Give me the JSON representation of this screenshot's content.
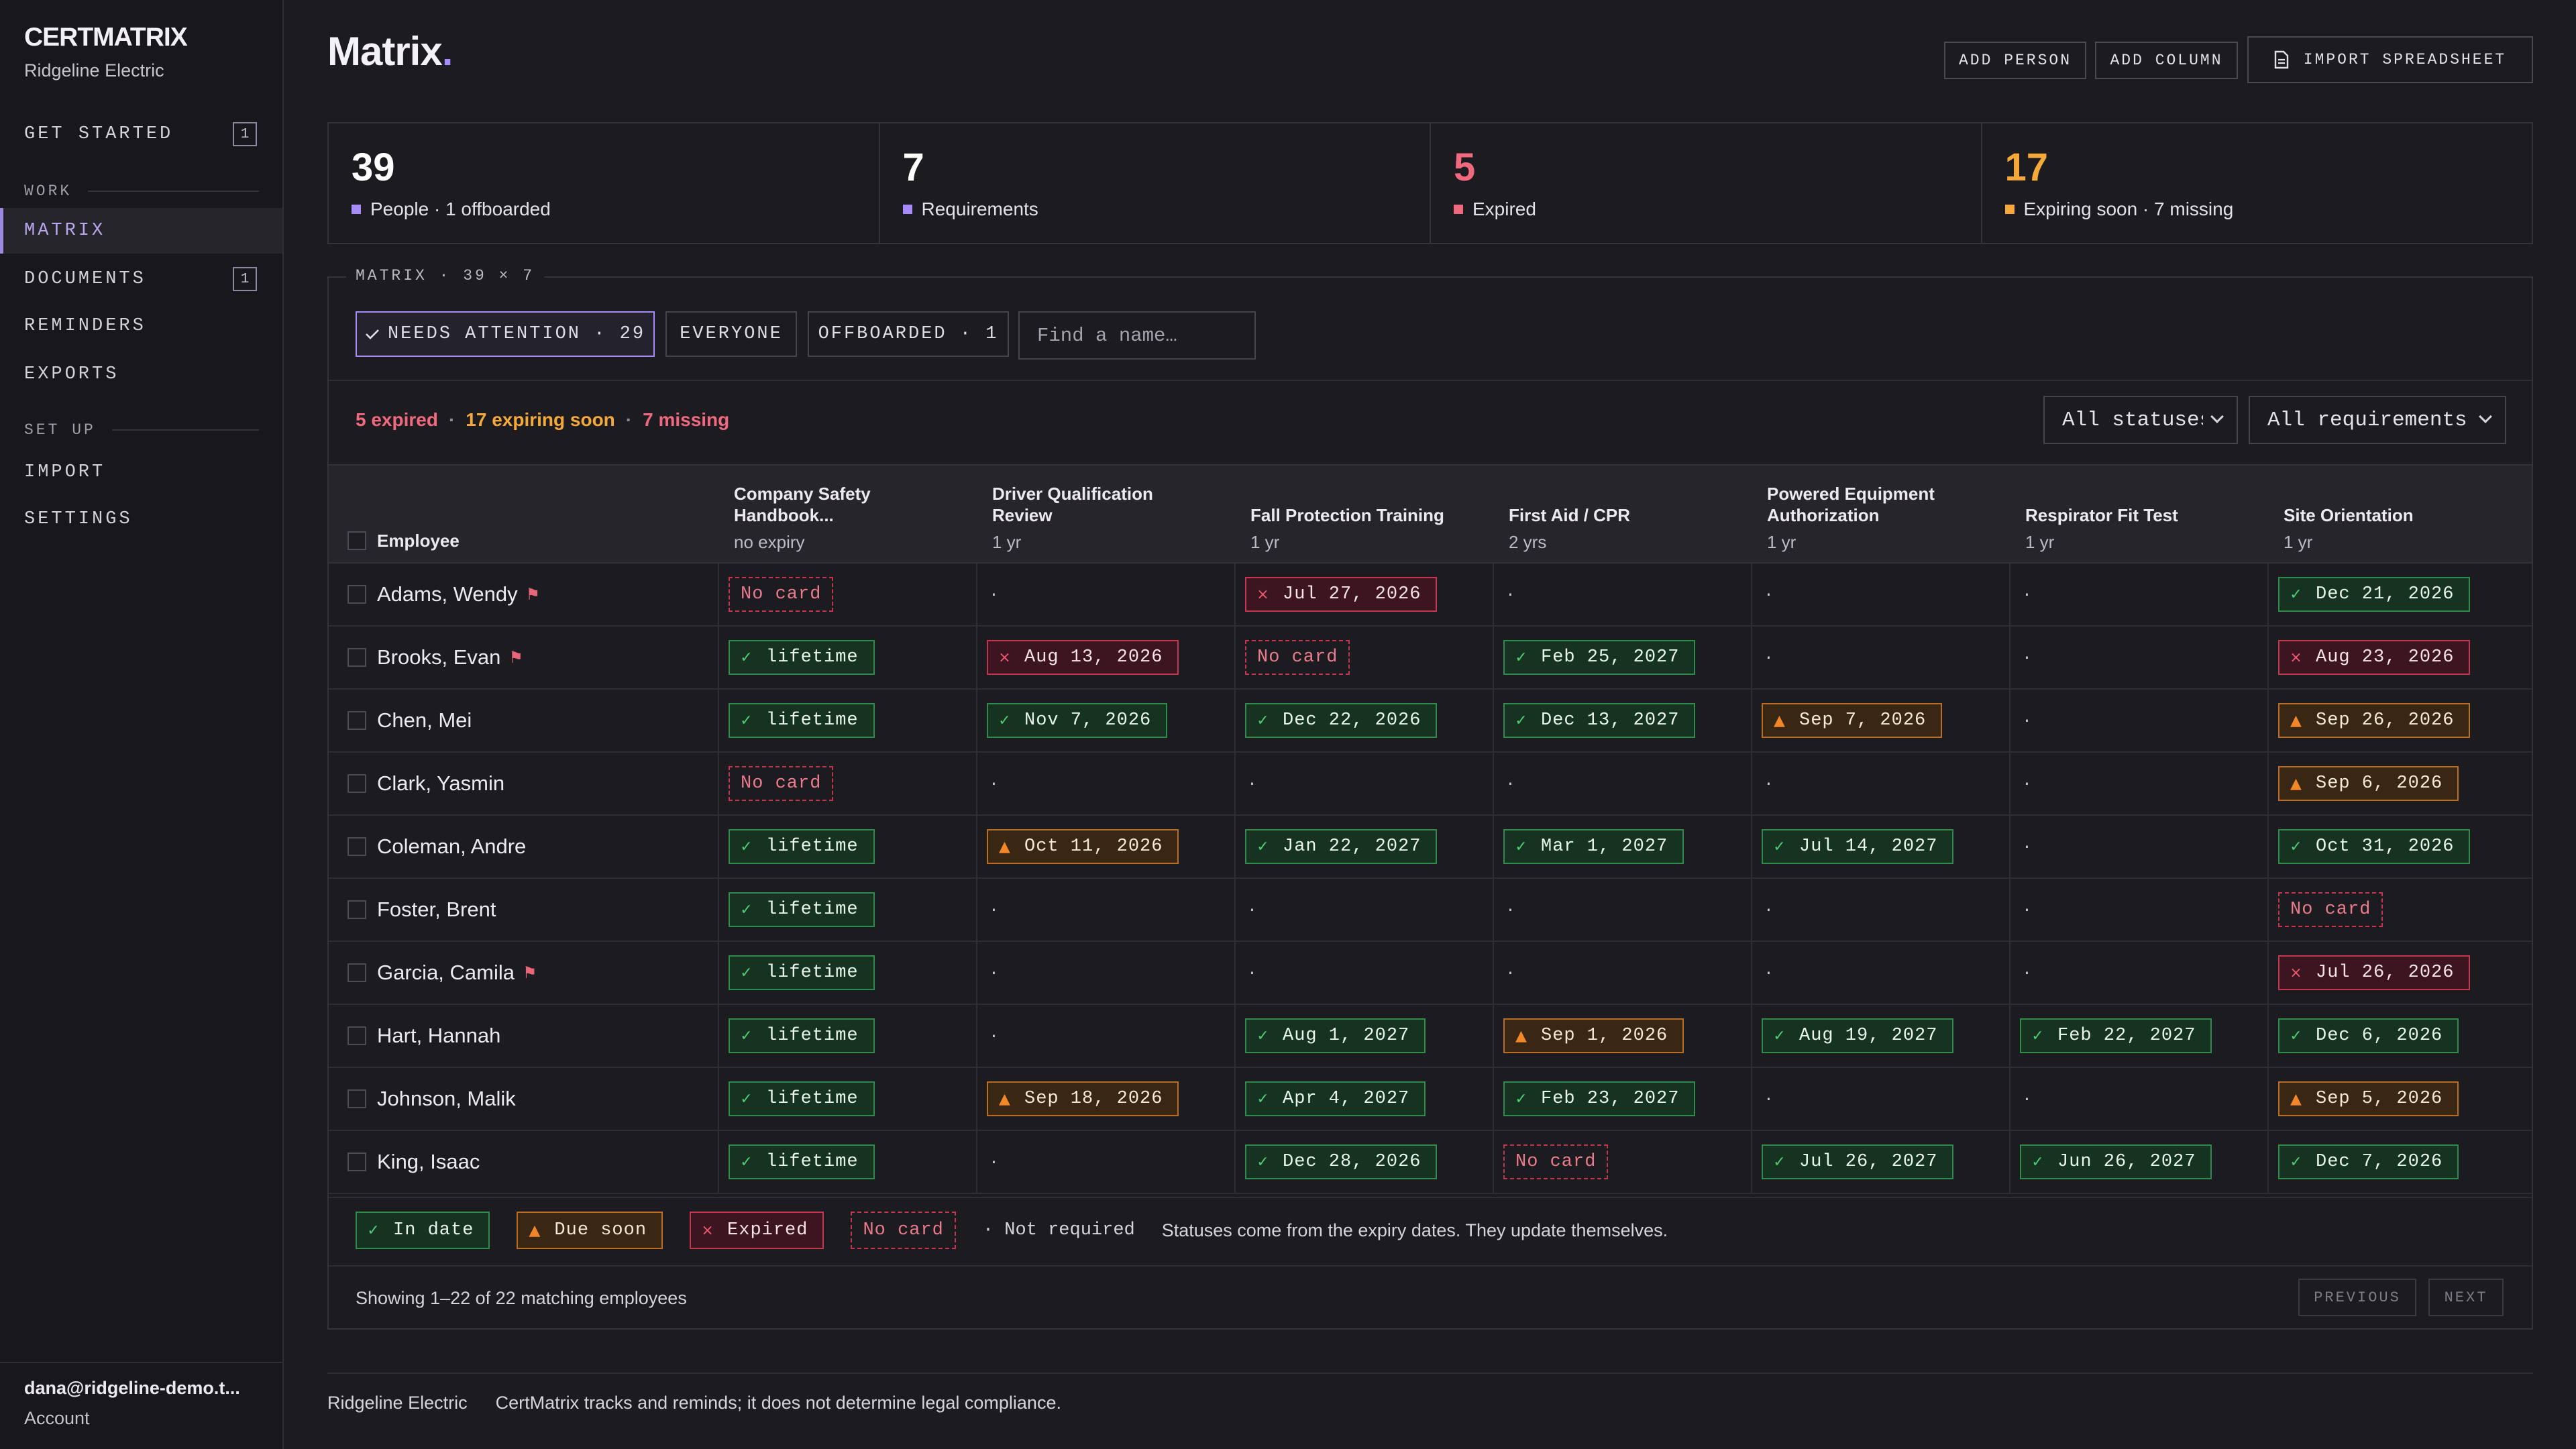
{
  "app": {
    "brand": "CERTMATRIX",
    "org": "Ridgeline Electric"
  },
  "sidebar": {
    "items": [
      {
        "label": "GET STARTED",
        "badge": "1"
      },
      {
        "label": "MATRIX"
      },
      {
        "label": "DOCUMENTS",
        "badge": "1"
      },
      {
        "label": "REMINDERS"
      },
      {
        "label": "EXPORTS"
      },
      {
        "label": "IMPORT"
      },
      {
        "label": "SETTINGS"
      }
    ],
    "sections": [
      "WORK",
      "SET UP"
    ],
    "account_email": "dana@ridgeline-demo.t...",
    "account_label": "Account"
  },
  "header": {
    "title": "Matrix",
    "title_dot": ".",
    "add_person": "ADD PERSON",
    "add_column": "ADD COLUMN",
    "import": "IMPORT SPREADSHEET"
  },
  "stats": [
    {
      "value": "39",
      "label": "People · 1 offboarded",
      "color": "#ffffff",
      "marker": "#a78bfa"
    },
    {
      "value": "7",
      "label": "Requirements",
      "color": "#ffffff",
      "marker": "#a78bfa"
    },
    {
      "value": "5",
      "label": "Expired",
      "color": "#f0697f",
      "marker": "#f0697f"
    },
    {
      "value": "17",
      "label": "Expiring soon · 7 missing",
      "color": "#f5a93a",
      "marker": "#f5a93a"
    }
  ],
  "panel": {
    "legend": "MATRIX · 39 × 7",
    "filters": {
      "needs_attention": "NEEDS ATTENTION · 29",
      "everyone": "EVERYONE",
      "offboarded": "OFFBOARDED · 1"
    },
    "search_placeholder": "Find a name…",
    "summary": {
      "expired": "5 expired",
      "soon": "17 expiring soon",
      "missing": "7 missing",
      "sep": "·"
    },
    "status_filter": "All statuses",
    "req_filter": "All requirements"
  },
  "table": {
    "employee_header": "Employee",
    "columns": [
      {
        "name": "Company Safety Handbook...",
        "period": "no expiry"
      },
      {
        "name": "Driver Qualification Review",
        "period": "1 yr"
      },
      {
        "name": "Fall Protection Training",
        "period": "1 yr"
      },
      {
        "name": "First Aid / CPR",
        "period": "2 yrs"
      },
      {
        "name": "Powered Equipment Authorization",
        "period": "1 yr"
      },
      {
        "name": "Respirator Fit Test",
        "period": "1 yr"
      },
      {
        "name": "Site Orientation",
        "period": "1 yr"
      }
    ],
    "rows": [
      {
        "name": "Adams, Wendy",
        "flag": true,
        "cells": [
          [
            "none",
            "No card"
          ],
          [
            "nr",
            "·"
          ],
          [
            "exp",
            "Jul 27, 2026"
          ],
          [
            "nr",
            "·"
          ],
          [
            "nr",
            "·"
          ],
          [
            "nr",
            "·"
          ],
          [
            "ok",
            "Dec 21, 2026"
          ]
        ]
      },
      {
        "name": "Brooks, Evan",
        "flag": true,
        "cells": [
          [
            "ok",
            "lifetime"
          ],
          [
            "exp",
            "Aug 13, 2026"
          ],
          [
            "none",
            "No card"
          ],
          [
            "ok",
            "Feb 25, 2027"
          ],
          [
            "nr",
            "·"
          ],
          [
            "nr",
            "·"
          ],
          [
            "exp",
            "Aug 23, 2026"
          ]
        ]
      },
      {
        "name": "Chen, Mei",
        "flag": false,
        "cells": [
          [
            "ok",
            "lifetime"
          ],
          [
            "ok",
            "Nov 7, 2026"
          ],
          [
            "ok",
            "Dec 22, 2026"
          ],
          [
            "ok",
            "Dec 13, 2027"
          ],
          [
            "soon",
            "Sep 7, 2026"
          ],
          [
            "nr",
            "·"
          ],
          [
            "soon",
            "Sep 26, 2026"
          ]
        ]
      },
      {
        "name": "Clark, Yasmin",
        "flag": false,
        "cells": [
          [
            "none",
            "No card"
          ],
          [
            "nr",
            "·"
          ],
          [
            "nr",
            "·"
          ],
          [
            "nr",
            "·"
          ],
          [
            "nr",
            "·"
          ],
          [
            "nr",
            "·"
          ],
          [
            "soon",
            "Sep 6, 2026"
          ]
        ]
      },
      {
        "name": "Coleman, Andre",
        "flag": false,
        "cells": [
          [
            "ok",
            "lifetime"
          ],
          [
            "soon",
            "Oct 11, 2026"
          ],
          [
            "ok",
            "Jan 22, 2027"
          ],
          [
            "ok",
            "Mar 1, 2027"
          ],
          [
            "ok",
            "Jul 14, 2027"
          ],
          [
            "nr",
            "·"
          ],
          [
            "ok",
            "Oct 31, 2026"
          ]
        ]
      },
      {
        "name": "Foster, Brent",
        "flag": false,
        "cells": [
          [
            "ok",
            "lifetime"
          ],
          [
            "nr",
            "·"
          ],
          [
            "nr",
            "·"
          ],
          [
            "nr",
            "·"
          ],
          [
            "nr",
            "·"
          ],
          [
            "nr",
            "·"
          ],
          [
            "none",
            "No card"
          ]
        ]
      },
      {
        "name": "Garcia, Camila",
        "flag": true,
        "cells": [
          [
            "ok",
            "lifetime"
          ],
          [
            "nr",
            "·"
          ],
          [
            "nr",
            "·"
          ],
          [
            "nr",
            "·"
          ],
          [
            "nr",
            "·"
          ],
          [
            "nr",
            "·"
          ],
          [
            "exp",
            "Jul 26, 2026"
          ]
        ]
      },
      {
        "name": "Hart, Hannah",
        "flag": false,
        "cells": [
          [
            "ok",
            "lifetime"
          ],
          [
            "nr",
            "·"
          ],
          [
            "ok",
            "Aug 1, 2027"
          ],
          [
            "soon",
            "Sep 1, 2026"
          ],
          [
            "ok",
            "Aug 19, 2027"
          ],
          [
            "ok",
            "Feb 22, 2027"
          ],
          [
            "ok",
            "Dec 6, 2026"
          ]
        ]
      },
      {
        "name": "Johnson, Malik",
        "flag": false,
        "cells": [
          [
            "ok",
            "lifetime"
          ],
          [
            "soon",
            "Sep 18, 2026"
          ],
          [
            "ok",
            "Apr 4, 2027"
          ],
          [
            "ok",
            "Feb 23, 2027"
          ],
          [
            "nr",
            "·"
          ],
          [
            "nr",
            "·"
          ],
          [
            "soon",
            "Sep 5, 2026"
          ]
        ]
      },
      {
        "name": "King, Isaac",
        "flag": false,
        "cells": [
          [
            "ok",
            "lifetime"
          ],
          [
            "nr",
            "·"
          ],
          [
            "ok",
            "Dec 28, 2026"
          ],
          [
            "none",
            "No card"
          ],
          [
            "ok",
            "Jul 26, 2027"
          ],
          [
            "ok",
            "Jun 26, 2027"
          ],
          [
            "ok",
            "Dec 7, 2026"
          ]
        ]
      }
    ]
  },
  "legend": {
    "in_date": "In date",
    "due_soon": "Due soon",
    "expired": "Expired",
    "no_card": "No card",
    "not_required": "· Not required",
    "note": "Statuses come from the expiry dates. They update themselves."
  },
  "pagination": {
    "showing": "Showing 1–22 of 22 matching employees",
    "previous": "PREVIOUS",
    "next": "NEXT"
  },
  "footer": {
    "org": "Ridgeline Electric",
    "note": "CertMatrix tracks and reminds; it does not determine legal compliance."
  },
  "icons": {
    "ok": "check-icon",
    "soon": "warning-triangle-icon",
    "exp": "x-icon",
    "flag": "flag-icon"
  }
}
